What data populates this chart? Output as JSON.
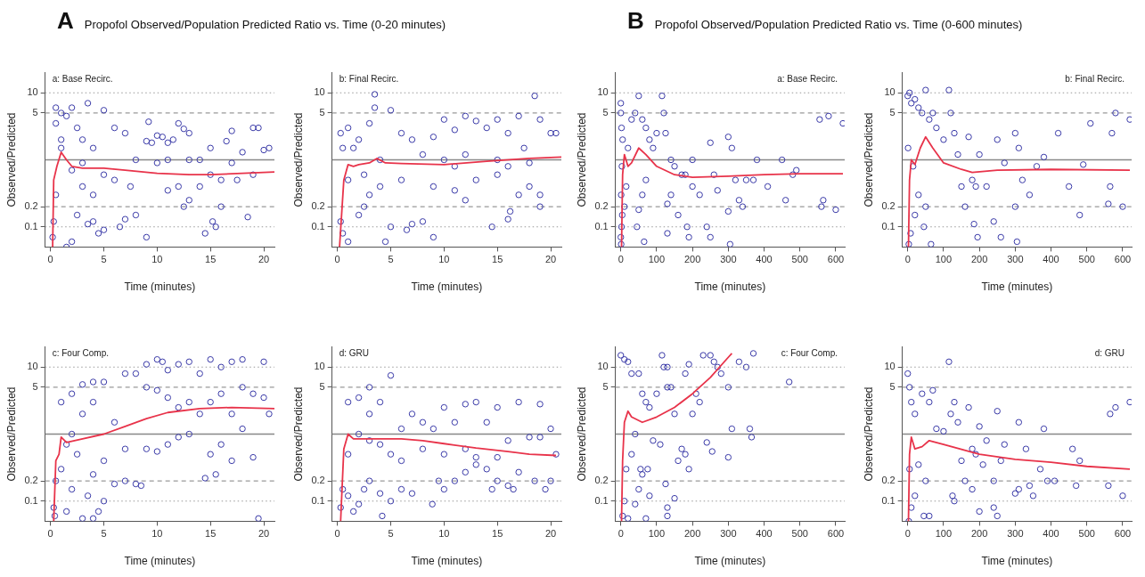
{
  "chart_data": [
    {
      "type": "scatter",
      "title": "a: Base Recirc.",
      "annotations": [
        "A",
        "Propofol Observed/Population Predicted Ratio vs. Time (0-20 minutes)"
      ],
      "xlabel": "Time (minutes)",
      "ylabel": "Observed/Predicted",
      "log": "y",
      "grid": false,
      "marker": "circle",
      "xlim": [
        -0.5,
        21
      ],
      "xticks": [
        0,
        5,
        10,
        15,
        20
      ],
      "ylim": [
        0.05,
        20
      ],
      "yticks": [
        0.1,
        0.2,
        5,
        10
      ],
      "ref_lines": [
        {
          "axis": "y",
          "value": 0.1,
          "line_style": "dotted",
          "color": "#999999"
        },
        {
          "axis": "y",
          "value": 0.2,
          "line_style": "dashed",
          "color": "#999999"
        },
        {
          "axis": "y",
          "value": 1,
          "line_style": "solid",
          "color": "#888888"
        },
        {
          "axis": "y",
          "value": 5,
          "line_style": "dashed",
          "color": "#999999"
        },
        {
          "axis": "y",
          "value": 10,
          "line_style": "dotted",
          "color": "#999999"
        }
      ],
      "series": [
        {
          "type": "scatter",
          "color": "#3a3aa8",
          "x": [
            9.2,
            9,
            9.5,
            10,
            10.5,
            11,
            11.5,
            12,
            12.5,
            13,
            10,
            11,
            13,
            14,
            12,
            11,
            12.5,
            13,
            14.5,
            15,
            15.5,
            15.2,
            16,
            16.5,
            17,
            17.5,
            18,
            18.5,
            19,
            19.5,
            20,
            9,
            8,
            7,
            6.5,
            5,
            4,
            4.5,
            3.5,
            5,
            2,
            0.5,
            1,
            1.5,
            2.5,
            3,
            1,
            0.5,
            0.3,
            0.2,
            1.5,
            2,
            2.5,
            3,
            4,
            6,
            7,
            8,
            6,
            7.5,
            5,
            2,
            3,
            1,
            0.5,
            4,
            3.5,
            14,
            16,
            19,
            20.5,
            17,
            15
          ],
          "values": [
            3.7,
            1.9,
            1.8,
            2.3,
            2.2,
            1.8,
            2,
            3.5,
            2.9,
            2.5,
            0.9,
            1,
            1,
            1,
            0.4,
            0.35,
            0.2,
            0.25,
            0.08,
            0.6,
            0.1,
            0.12,
            0.2,
            1.9,
            2.7,
            0.5,
            1.3,
            0.14,
            3,
            3,
            1.4,
            0.07,
            0.15,
            0.13,
            0.1,
            0.09,
            0.3,
            0.08,
            7,
            5.5,
            6,
            6,
            5,
            4.5,
            3,
            2,
            2,
            0.3,
            0.12,
            0.07,
            0.05,
            0.06,
            0.15,
            0.4,
            1.5,
            3,
            2.5,
            1,
            0.5,
            0.4,
            0.6,
            0.7,
            0.9,
            1.5,
            3.5,
            0.12,
            0.11,
            0.4,
            0.5,
            0.6,
            1.5,
            0.9,
            1.5
          ]
        },
        {
          "type": "line",
          "color": "#e8334a",
          "marker": "none",
          "x": [
            0.2,
            0.3,
            0.6,
            1,
            1.5,
            2,
            3,
            5,
            7,
            10,
            13,
            15,
            18,
            21
          ],
          "values": [
            0.05,
            0.5,
            0.8,
            1.3,
            1,
            0.8,
            0.75,
            0.75,
            0.7,
            0.63,
            0.6,
            0.6,
            0.63,
            0.66
          ]
        }
      ]
    },
    {
      "type": "scatter",
      "title": "b: Final Recirc.",
      "xlabel": "Time (minutes)",
      "ylabel": "Observed/Predicted",
      "log": "y",
      "grid": false,
      "marker": "circle",
      "xlim": [
        -0.5,
        21
      ],
      "xticks": [
        0,
        5,
        10,
        15,
        20
      ],
      "ylim": [
        0.05,
        20
      ],
      "yticks": [
        0.1,
        0.2,
        5,
        10
      ],
      "ref_lines": [
        {
          "axis": "y",
          "value": 0.1,
          "line_style": "dotted",
          "color": "#999999"
        },
        {
          "axis": "y",
          "value": 0.2,
          "line_style": "dashed",
          "color": "#999999"
        },
        {
          "axis": "y",
          "value": 1,
          "line_style": "solid",
          "color": "#888888"
        },
        {
          "axis": "y",
          "value": 5,
          "line_style": "dashed",
          "color": "#999999"
        },
        {
          "axis": "y",
          "value": 10,
          "line_style": "dotted",
          "color": "#999999"
        }
      ],
      "series": [
        {
          "type": "scatter",
          "color": "#3a3aa8",
          "x": [
            3.5,
            18.5,
            3.5,
            5,
            10,
            12,
            13,
            14,
            15,
            17,
            19,
            16,
            20,
            11,
            9,
            10,
            12,
            13,
            15,
            16,
            17,
            18,
            19,
            14.5,
            16,
            16.2,
            19,
            9,
            8,
            7,
            6.5,
            4.5,
            5,
            0.3,
            0.5,
            1,
            2,
            2.5,
            1,
            2,
            3,
            1.5,
            2.5,
            4,
            6,
            7,
            8,
            6,
            9,
            11,
            12,
            20.5,
            17.5,
            18,
            15,
            11,
            3,
            1,
            0.5,
            0.3,
            4
          ],
          "values": [
            9.5,
            9,
            6,
            5.5,
            4,
            4.5,
            3.8,
            3,
            4,
            4.5,
            4,
            2.5,
            2.5,
            2.8,
            2.2,
            1,
            1.2,
            0.5,
            0.6,
            0.8,
            0.3,
            0.4,
            0.3,
            0.1,
            0.13,
            0.17,
            0.2,
            0.07,
            0.12,
            0.11,
            0.09,
            0.06,
            0.1,
            0.12,
            0.08,
            0.06,
            0.15,
            0.2,
            3,
            2,
            3.5,
            1.5,
            0.6,
            0.4,
            2.5,
            2,
            1.2,
            0.5,
            0.4,
            0.35,
            0.25,
            2.5,
            1.5,
            0.9,
            1,
            0.8,
            0.3,
            0.5,
            1.5,
            2.5,
            1
          ]
        },
        {
          "type": "line",
          "color": "#e8334a",
          "marker": "none",
          "x": [
            0.2,
            0.6,
            1,
            1.5,
            2,
            3,
            3.7,
            4.5,
            6,
            10,
            14,
            18,
            21
          ],
          "values": [
            0.05,
            0.5,
            0.85,
            0.8,
            0.85,
            0.9,
            1.05,
            0.9,
            0.88,
            0.85,
            0.95,
            1.05,
            1.1
          ]
        }
      ]
    },
    {
      "type": "scatter",
      "title": "c: Four Comp.",
      "xlabel": "Time (minutes)",
      "ylabel": "Observed/Predicted",
      "log": "y",
      "grid": false,
      "marker": "circle",
      "xlim": [
        -0.5,
        21
      ],
      "xticks": [
        0,
        5,
        10,
        15,
        20
      ],
      "ylim": [
        0.05,
        20
      ],
      "yticks": [
        0.1,
        0.2,
        5,
        10
      ],
      "ref_lines": [
        {
          "axis": "y",
          "value": 0.1,
          "line_style": "dotted",
          "color": "#999999"
        },
        {
          "axis": "y",
          "value": 0.2,
          "line_style": "dashed",
          "color": "#999999"
        },
        {
          "axis": "y",
          "value": 1,
          "line_style": "solid",
          "color": "#888888"
        },
        {
          "axis": "y",
          "value": 5,
          "line_style": "dashed",
          "color": "#999999"
        },
        {
          "axis": "y",
          "value": 10,
          "line_style": "dotted",
          "color": "#999999"
        }
      ],
      "series": [
        {
          "type": "scatter",
          "color": "#3a3aa8",
          "x": [
            1,
            2,
            3,
            4,
            5,
            4,
            3,
            2,
            1,
            0.5,
            0.3,
            0.4,
            1.5,
            2,
            3,
            4,
            3.5,
            4.5,
            5,
            6,
            7,
            8,
            8.5,
            7,
            6,
            7,
            8,
            9,
            10,
            10.5,
            11,
            12,
            13,
            14,
            15,
            16,
            17,
            18,
            20,
            9,
            10,
            11,
            12,
            13,
            14,
            15,
            16,
            17,
            18,
            19,
            20,
            19.5,
            19,
            17,
            16,
            15,
            14.5,
            15.5,
            12,
            10,
            9,
            11,
            13,
            18,
            20.5,
            5,
            4,
            2.5,
            1.5
          ],
          "values": [
            3,
            4,
            5.5,
            6,
            6,
            3,
            2,
            1,
            0.3,
            0.2,
            0.08,
            0.06,
            0.07,
            0.15,
            0.055,
            0.055,
            0.12,
            0.07,
            0.1,
            0.18,
            0.2,
            0.18,
            0.17,
            0.6,
            1.5,
            8,
            8,
            11,
            13,
            12,
            9,
            11,
            12,
            8,
            13,
            10,
            12,
            13,
            12,
            5,
            4.5,
            3.5,
            2.5,
            3,
            2,
            3,
            4,
            2,
            5,
            4,
            3.5,
            0.055,
            0.45,
            0.4,
            0.7,
            0.5,
            0.22,
            0.25,
            0.9,
            0.55,
            0.6,
            0.7,
            1,
            1.2,
            2,
            0.4,
            0.25,
            0.5,
            0.7
          ]
        },
        {
          "type": "line",
          "color": "#e8334a",
          "marker": "none",
          "x": [
            0.3,
            0.5,
            0.8,
            1,
            1.5,
            3,
            5,
            7,
            9,
            11,
            14,
            17,
            21
          ],
          "values": [
            0.05,
            0.4,
            0.5,
            0.9,
            0.75,
            0.85,
            1,
            1.3,
            1.7,
            2.1,
            2.4,
            2.5,
            2.4
          ]
        }
      ]
    },
    {
      "type": "scatter",
      "title": "d: GRU",
      "xlabel": "Time (minutes)",
      "ylabel": "Observed/Predicted",
      "log": "y",
      "grid": false,
      "marker": "circle",
      "xlim": [
        -0.5,
        21
      ],
      "xticks": [
        0,
        5,
        10,
        15,
        20
      ],
      "ylim": [
        0.05,
        20
      ],
      "yticks": [
        0.1,
        0.2,
        5,
        10
      ],
      "ref_lines": [
        {
          "axis": "y",
          "value": 0.1,
          "line_style": "dotted",
          "color": "#999999"
        },
        {
          "axis": "y",
          "value": 0.2,
          "line_style": "dashed",
          "color": "#999999"
        },
        {
          "axis": "y",
          "value": 1,
          "line_style": "solid",
          "color": "#888888"
        },
        {
          "axis": "y",
          "value": 5,
          "line_style": "dashed",
          "color": "#999999"
        },
        {
          "axis": "y",
          "value": 10,
          "line_style": "dotted",
          "color": "#999999"
        }
      ],
      "series": [
        {
          "type": "scatter",
          "color": "#3a3aa8",
          "x": [
            1,
            2,
            3,
            5,
            4,
            3,
            2,
            1,
            0.5,
            0.3,
            1,
            1.5,
            2,
            2.5,
            3,
            4,
            4.2,
            5,
            6,
            7,
            8.9,
            9.5,
            10,
            11,
            12,
            13,
            14,
            14.5,
            15,
            16,
            16.5,
            17,
            18.5,
            19.5,
            20,
            10,
            11,
            12,
            13,
            14,
            15,
            17,
            19,
            20,
            9,
            8,
            7,
            6,
            5,
            6,
            8,
            10,
            12,
            13,
            15,
            16,
            18,
            19,
            20.5,
            4,
            3
          ],
          "values": [
            3,
            3.5,
            5,
            7.5,
            3,
            2,
            1,
            0.5,
            0.15,
            0.08,
            0.12,
            0.07,
            0.09,
            0.15,
            0.2,
            0.13,
            0.06,
            0.1,
            0.15,
            0.13,
            0.09,
            0.2,
            0.15,
            0.2,
            0.27,
            0.35,
            0.3,
            0.15,
            0.2,
            0.17,
            0.15,
            0.27,
            0.2,
            0.15,
            0.2,
            2.5,
            1.5,
            2.8,
            3,
            1.5,
            2.5,
            3,
            2.8,
            1.2,
            1.2,
            1.5,
            2,
            1.2,
            0.5,
            0.4,
            0.6,
            0.5,
            0.6,
            0.45,
            0.45,
            0.8,
            0.9,
            0.9,
            0.5,
            0.7,
            0.8
          ]
        },
        {
          "type": "line",
          "color": "#e8334a",
          "marker": "none",
          "x": [
            0.3,
            0.6,
            1,
            1.5,
            3,
            6,
            8,
            10,
            13,
            16,
            18,
            20.5
          ],
          "values": [
            0.05,
            0.6,
            1,
            0.85,
            0.85,
            0.85,
            0.8,
            0.72,
            0.62,
            0.55,
            0.5,
            0.48
          ]
        }
      ]
    },
    {
      "type": "scatter",
      "title": "a: Base Recirc.",
      "annotations": [
        "B",
        "Propofol Observed/Population Predicted Ratio vs. Time (0-600 minutes)"
      ],
      "xlabel": "Time (minutes)",
      "ylabel": "Observed/Predicted",
      "log": "y",
      "grid": false,
      "marker": "circle",
      "xlim": [
        -15,
        625
      ],
      "xticks": [
        0,
        100,
        200,
        300,
        400,
        500,
        600
      ],
      "ylim": [
        0.05,
        20
      ],
      "yticks": [
        0.1,
        0.2,
        5,
        10
      ],
      "ref_lines": [
        {
          "axis": "y",
          "value": 0.1,
          "line_style": "dotted",
          "color": "#999999"
        },
        {
          "axis": "y",
          "value": 0.2,
          "line_style": "dashed",
          "color": "#999999"
        },
        {
          "axis": "y",
          "value": 1,
          "line_style": "solid",
          "color": "#888888"
        },
        {
          "axis": "y",
          "value": 5,
          "line_style": "dashed",
          "color": "#999999"
        },
        {
          "axis": "y",
          "value": 10,
          "line_style": "dotted",
          "color": "#999999"
        }
      ],
      "series": [
        {
          "type": "scatter",
          "color": "#3a3aa8",
          "x": [
            0,
            0,
            2,
            5,
            3,
            1,
            4,
            2,
            0,
            1,
            10,
            15,
            20,
            30,
            40,
            50,
            60,
            65,
            70,
            80,
            90,
            100,
            115,
            120,
            125,
            130,
            130,
            140,
            140,
            150,
            160,
            170,
            180,
            185,
            190,
            200,
            200,
            220,
            240,
            250,
            250,
            260,
            270,
            300,
            300,
            305,
            310,
            320,
            330,
            340,
            350,
            370,
            380,
            410,
            450,
            460,
            480,
            490,
            560,
            565,
            555,
            580,
            600,
            620,
            45,
            50,
            60,
            70
          ],
          "values": [
            7,
            5,
            3,
            2,
            0.8,
            0.3,
            0.15,
            0.1,
            0.07,
            0.055,
            0.2,
            0.4,
            1.5,
            4,
            5,
            9,
            4,
            0.06,
            3,
            2,
            1.5,
            2.5,
            9,
            5,
            2.5,
            0.08,
            0.22,
            1,
            0.3,
            0.8,
            0.15,
            0.6,
            0.6,
            0.1,
            0.07,
            0.4,
            1,
            0.3,
            0.1,
            0.07,
            1.8,
            0.6,
            0.35,
            2.2,
            0.17,
            0.055,
            1.5,
            0.5,
            0.25,
            0.2,
            0.5,
            0.5,
            1,
            0.4,
            1,
            0.25,
            0.6,
            0.7,
            0.2,
            0.25,
            4,
            4.5,
            0.18,
            3.5,
            0.1,
            0.18,
            0.3,
            0.5
          ]
        },
        {
          "type": "line",
          "color": "#e8334a",
          "marker": "none",
          "x": [
            2,
            5,
            10,
            20,
            30,
            50,
            70,
            100,
            150,
            200,
            300,
            400,
            500,
            620
          ],
          "values": [
            0.05,
            0.6,
            1.2,
            0.8,
            0.9,
            1.5,
            1.2,
            0.8,
            0.6,
            0.55,
            0.57,
            0.6,
            0.62,
            0.62
          ]
        }
      ]
    },
    {
      "type": "scatter",
      "title": "b: Final Recirc.",
      "xlabel": "Time (minutes)",
      "ylabel": "Observed/Predicted",
      "log": "y",
      "grid": false,
      "marker": "circle",
      "xlim": [
        -15,
        625
      ],
      "xticks": [
        0,
        100,
        200,
        300,
        400,
        500,
        600
      ],
      "ylim": [
        0.05,
        20
      ],
      "yticks": [
        0.1,
        0.2,
        5,
        10
      ],
      "ref_lines": [
        {
          "axis": "y",
          "value": 0.1,
          "line_style": "dotted",
          "color": "#999999"
        },
        {
          "axis": "y",
          "value": 0.2,
          "line_style": "dashed",
          "color": "#999999"
        },
        {
          "axis": "y",
          "value": 1,
          "line_style": "solid",
          "color": "#888888"
        },
        {
          "axis": "y",
          "value": 5,
          "line_style": "dashed",
          "color": "#999999"
        },
        {
          "axis": "y",
          "value": 10,
          "line_style": "dotted",
          "color": "#999999"
        }
      ],
      "series": [
        {
          "type": "scatter",
          "color": "#3a3aa8",
          "x": [
            0,
            5,
            10,
            20,
            30,
            40,
            50,
            60,
            70,
            80,
            100,
            115,
            120,
            130,
            140,
            150,
            160,
            170,
            180,
            185,
            190,
            195,
            200,
            220,
            240,
            250,
            260,
            270,
            300,
            300,
            305,
            310,
            320,
            340,
            360,
            380,
            420,
            450,
            480,
            490,
            510,
            560,
            565,
            570,
            580,
            600,
            620,
            45,
            50,
            65,
            30,
            20,
            3,
            8,
            1,
            15
          ],
          "values": [
            9,
            10,
            7,
            8,
            6,
            5,
            11,
            4,
            5,
            3,
            2,
            11,
            5,
            2.5,
            1.2,
            0.4,
            0.2,
            2.2,
            0.5,
            0.11,
            0.4,
            0.07,
            1.2,
            0.4,
            0.12,
            2,
            0.07,
            0.9,
            0.2,
            2.5,
            0.06,
            1.5,
            0.5,
            0.3,
            0.8,
            1.1,
            2.5,
            0.4,
            0.15,
            0.85,
            3.5,
            0.22,
            0.4,
            2.5,
            5,
            0.2,
            4,
            0.1,
            0.2,
            0.055,
            0.3,
            0.15,
            0.055,
            0.08,
            1.5,
            0.8
          ]
        },
        {
          "type": "line",
          "color": "#e8334a",
          "marker": "none",
          "x": [
            2,
            5,
            10,
            20,
            35,
            50,
            70,
            100,
            150,
            180,
            250,
            400,
            620
          ],
          "values": [
            0.05,
            0.5,
            1,
            0.85,
            1.5,
            2.2,
            1.5,
            0.9,
            0.72,
            0.65,
            0.7,
            0.72,
            0.7
          ]
        }
      ]
    },
    {
      "type": "scatter",
      "title": "c: Four Comp.",
      "xlabel": "Time (minutes)",
      "ylabel": "Observed/Predicted",
      "log": "y",
      "grid": false,
      "marker": "circle",
      "xlim": [
        -15,
        625
      ],
      "xticks": [
        0,
        100,
        200,
        300,
        400,
        500,
        600
      ],
      "ylim": [
        0.05,
        20
      ],
      "yticks": [
        0.1,
        0.2,
        5,
        10
      ],
      "ref_lines": [
        {
          "axis": "y",
          "value": 0.1,
          "line_style": "dotted",
          "color": "#999999"
        },
        {
          "axis": "y",
          "value": 0.2,
          "line_style": "dashed",
          "color": "#999999"
        },
        {
          "axis": "y",
          "value": 1,
          "line_style": "solid",
          "color": "#888888"
        },
        {
          "axis": "y",
          "value": 5,
          "line_style": "dashed",
          "color": "#999999"
        },
        {
          "axis": "y",
          "value": 10,
          "line_style": "dotted",
          "color": "#999999"
        }
      ],
      "series": [
        {
          "type": "scatter",
          "color": "#3a3aa8",
          "x": [
            0,
            10,
            20,
            30,
            50,
            60,
            70,
            80,
            100,
            115,
            120,
            130,
            130,
            140,
            150,
            160,
            170,
            180,
            190,
            200,
            210,
            220,
            180,
            190,
            230,
            240,
            250,
            255,
            260,
            270,
            280,
            300,
            300,
            310,
            330,
            350,
            360,
            365,
            370,
            470,
            130,
            130,
            150,
            70,
            40,
            50,
            60,
            80,
            110,
            125,
            20,
            10,
            5,
            15,
            30,
            40,
            55,
            75,
            90
          ],
          "values": [
            15,
            13,
            12,
            8,
            8,
            4,
            3,
            2.5,
            4,
            15,
            10,
            10,
            5,
            5,
            2,
            0.4,
            0.6,
            0.5,
            0.3,
            2,
            4,
            3,
            8,
            11,
            15,
            0.75,
            15,
            0.55,
            12,
            10,
            8,
            0.45,
            5,
            1.2,
            12,
            10,
            1.2,
            0.9,
            16,
            6,
            0.08,
            0.06,
            0.11,
            0.055,
            0.09,
            0.15,
            0.25,
            0.12,
            0.7,
            0.18,
            0.055,
            0.1,
            0.06,
            0.3,
            0.5,
            1,
            0.3,
            0.3,
            0.8
          ]
        },
        {
          "type": "line",
          "color": "#e8334a",
          "marker": "none",
          "x": [
            2,
            5,
            10,
            20,
            30,
            60,
            100,
            150,
            200,
            250,
            300,
            310
          ],
          "values": [
            0.05,
            0.4,
            1.5,
            2.2,
            1.8,
            1.5,
            1.8,
            2.5,
            4,
            7,
            14,
            16
          ]
        }
      ]
    },
    {
      "type": "scatter",
      "title": "d: GRU",
      "xlabel": "Time (minutes)",
      "ylabel": "Observed/Predicted",
      "log": "y",
      "grid": false,
      "marker": "circle",
      "xlim": [
        -15,
        625
      ],
      "xticks": [
        0,
        100,
        200,
        300,
        400,
        500,
        600
      ],
      "ylim": [
        0.05,
        20
      ],
      "yticks": [
        0.1,
        0.2,
        5,
        10
      ],
      "ref_lines": [
        {
          "axis": "y",
          "value": 0.1,
          "line_style": "dotted",
          "color": "#999999"
        },
        {
          "axis": "y",
          "value": 0.2,
          "line_style": "dashed",
          "color": "#999999"
        },
        {
          "axis": "y",
          "value": 1,
          "line_style": "solid",
          "color": "#888888"
        },
        {
          "axis": "y",
          "value": 5,
          "line_style": "dashed",
          "color": "#999999"
        },
        {
          "axis": "y",
          "value": 10,
          "line_style": "dotted",
          "color": "#999999"
        }
      ],
      "series": [
        {
          "type": "scatter",
          "color": "#3a3aa8",
          "x": [
            0,
            5,
            10,
            20,
            40,
            60,
            70,
            80,
            100,
            115,
            120,
            130,
            140,
            150,
            160,
            170,
            180,
            180,
            190,
            200,
            200,
            210,
            220,
            240,
            240,
            250,
            250,
            260,
            270,
            300,
            310,
            310,
            330,
            340,
            350,
            370,
            380,
            390,
            410,
            460,
            470,
            480,
            560,
            565,
            580,
            600,
            620,
            45,
            60,
            125,
            130,
            50,
            30,
            20,
            10,
            3,
            5
          ],
          "values": [
            8,
            5,
            3,
            2,
            4,
            3,
            4.5,
            1.2,
            1.1,
            12,
            2,
            3,
            1.5,
            0.4,
            0.2,
            2.5,
            0.6,
            0.15,
            0.5,
            0.07,
            1.3,
            0.35,
            0.8,
            0.2,
            0.08,
            0.06,
            2.2,
            0.4,
            0.7,
            0.13,
            0.15,
            1.5,
            0.6,
            0.17,
            0.12,
            0.3,
            1.2,
            0.2,
            0.2,
            0.6,
            0.17,
            0.4,
            0.17,
            2,
            2.5,
            0.12,
            3,
            0.06,
            0.06,
            0.12,
            0.1,
            0.2,
            0.35,
            0.12,
            0.08,
            0.05,
            0.3
          ]
        },
        {
          "type": "line",
          "color": "#e8334a",
          "marker": "none",
          "x": [
            2,
            5,
            10,
            20,
            40,
            60,
            100,
            200,
            300,
            400,
            500,
            620
          ],
          "values": [
            0.05,
            0.5,
            0.9,
            0.6,
            0.65,
            0.8,
            0.7,
            0.5,
            0.42,
            0.38,
            0.33,
            0.3
          ]
        }
      ]
    }
  ]
}
